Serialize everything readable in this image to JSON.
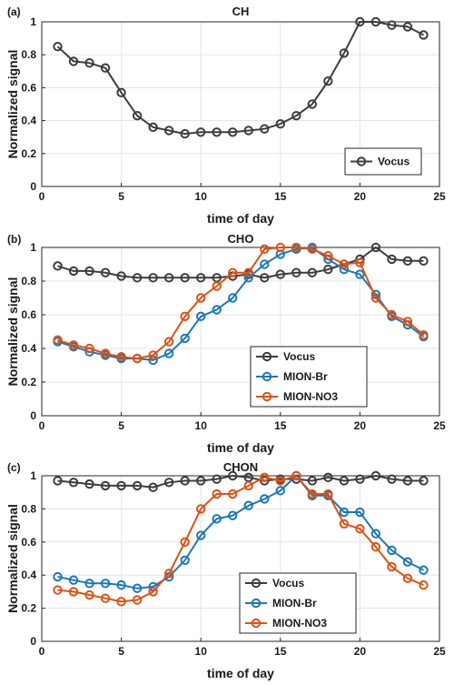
{
  "chart_data": [
    {
      "type": "line",
      "panel_label": "(a)",
      "title": "CH",
      "xlabel": "time of day",
      "ylabel": "Normalized signal",
      "xlim": [
        0,
        25
      ],
      "ylim": [
        0,
        1
      ],
      "xticks": [
        0,
        5,
        10,
        15,
        20,
        25
      ],
      "yticks": [
        0,
        0.2,
        0.4,
        0.6,
        0.8,
        1
      ],
      "ytick_labels": [
        "0",
        "0.2",
        "0.4",
        "0.6",
        "0.8",
        "1"
      ],
      "grid": true,
      "legend_position": "bottom-right",
      "x": [
        1,
        2,
        3,
        4,
        5,
        6,
        7,
        8,
        9,
        10,
        11,
        12,
        13,
        14,
        15,
        16,
        17,
        18,
        19,
        20,
        21,
        22,
        23,
        24
      ],
      "series": [
        {
          "name": "Vocus",
          "color": "#3d3d3d",
          "values": [
            0.85,
            0.76,
            0.75,
            0.72,
            0.57,
            0.43,
            0.36,
            0.34,
            0.32,
            0.33,
            0.33,
            0.33,
            0.34,
            0.35,
            0.38,
            0.43,
            0.5,
            0.64,
            0.81,
            1.0,
            1.0,
            0.98,
            0.97,
            0.92
          ]
        }
      ]
    },
    {
      "type": "line",
      "panel_label": "(b)",
      "title": "CHO",
      "xlabel": "time of day",
      "ylabel": "Normalized signal",
      "xlim": [
        0,
        25
      ],
      "ylim": [
        0,
        1
      ],
      "xticks": [
        0,
        5,
        10,
        15,
        20,
        25
      ],
      "yticks": [
        0,
        0.2,
        0.4,
        0.6,
        0.8,
        1
      ],
      "ytick_labels": [
        "0",
        "0.2",
        "0.4",
        "0.6",
        "0.8",
        "1"
      ],
      "grid": true,
      "legend_position": "bottom-center",
      "x": [
        1,
        2,
        3,
        4,
        5,
        6,
        7,
        8,
        9,
        10,
        11,
        12,
        13,
        14,
        15,
        16,
        17,
        18,
        19,
        20,
        21,
        22,
        23,
        24
      ],
      "series": [
        {
          "name": "Vocus",
          "color": "#3d3d3d",
          "values": [
            0.89,
            0.86,
            0.86,
            0.85,
            0.83,
            0.82,
            0.82,
            0.82,
            0.82,
            0.82,
            0.82,
            0.83,
            0.84,
            0.82,
            0.84,
            0.85,
            0.85,
            0.87,
            0.9,
            0.93,
            1.0,
            0.93,
            0.92,
            0.92
          ]
        },
        {
          "name": "MION-Br",
          "color": "#1f77b4",
          "values": [
            0.44,
            0.41,
            0.38,
            0.36,
            0.34,
            0.34,
            0.33,
            0.37,
            0.46,
            0.59,
            0.63,
            0.7,
            0.82,
            0.9,
            0.96,
            0.99,
            1.0,
            0.93,
            0.87,
            0.84,
            0.72,
            0.59,
            0.54,
            0.47
          ]
        },
        {
          "name": "MION-NO3",
          "color": "#d95319",
          "values": [
            0.45,
            0.42,
            0.4,
            0.37,
            0.35,
            0.34,
            0.36,
            0.44,
            0.59,
            0.7,
            0.77,
            0.85,
            0.85,
            0.99,
            1.0,
            1.0,
            0.99,
            0.95,
            0.9,
            0.91,
            0.7,
            0.6,
            0.56,
            0.48
          ]
        }
      ]
    },
    {
      "type": "line",
      "panel_label": "(c)",
      "title": "CHON",
      "xlabel": "time of day",
      "ylabel": "Normalized signal",
      "xlim": [
        0,
        25
      ],
      "ylim": [
        0,
        1
      ],
      "xticks": [
        0,
        5,
        10,
        15,
        20,
        25
      ],
      "yticks": [
        0,
        0.2,
        0.4,
        0.6,
        0.8,
        1
      ],
      "ytick_labels": [
        "0",
        "0.2",
        "0.4",
        "0.6",
        "0.8",
        "1"
      ],
      "grid": true,
      "legend_position": "bottom-center",
      "x": [
        1,
        2,
        3,
        4,
        5,
        6,
        7,
        8,
        9,
        10,
        11,
        12,
        13,
        14,
        15,
        16,
        17,
        18,
        19,
        20,
        21,
        22,
        23,
        24
      ],
      "series": [
        {
          "name": "Vocus",
          "color": "#3d3d3d",
          "values": [
            0.97,
            0.96,
            0.95,
            0.94,
            0.94,
            0.94,
            0.93,
            0.96,
            0.97,
            0.97,
            0.98,
            1.0,
            0.99,
            0.97,
            0.98,
            0.98,
            0.97,
            0.99,
            0.97,
            0.98,
            1.0,
            0.98,
            0.97,
            0.97
          ]
        },
        {
          "name": "MION-Br",
          "color": "#1f77b4",
          "values": [
            0.39,
            0.37,
            0.35,
            0.35,
            0.34,
            0.32,
            0.33,
            0.39,
            0.49,
            0.64,
            0.74,
            0.76,
            0.82,
            0.86,
            0.91,
            1.0,
            0.88,
            0.88,
            0.78,
            0.78,
            0.65,
            0.55,
            0.48,
            0.43
          ]
        },
        {
          "name": "MION-NO3",
          "color": "#d95319",
          "values": [
            0.31,
            0.3,
            0.28,
            0.26,
            0.24,
            0.25,
            0.3,
            0.41,
            0.6,
            0.8,
            0.89,
            0.89,
            0.94,
            0.99,
            0.97,
            1.0,
            0.89,
            0.89,
            0.71,
            0.68,
            0.57,
            0.45,
            0.38,
            0.34
          ]
        }
      ]
    }
  ]
}
